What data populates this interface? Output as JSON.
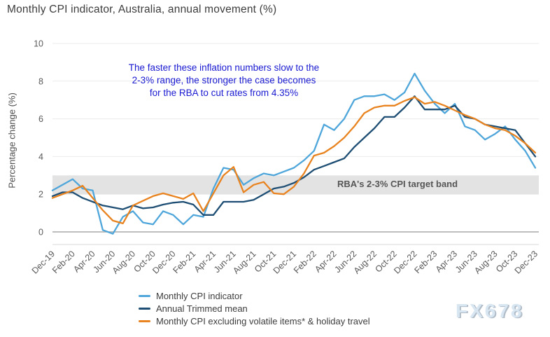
{
  "header": {
    "title": "Monthly CPI indicator, Australia, annual movement (%)"
  },
  "annotation": {
    "line1": "The faster these inflation numbers slow to the",
    "line2": "2-3% range, the stronger the case becomes",
    "line3": "for the RBA to cut rates from 4.35%",
    "color": "#1a1ad1"
  },
  "watermark": {
    "text": "FX678"
  },
  "chart_data": {
    "type": "line",
    "title": "Monthly CPI indicator, Australia, annual movement (%)",
    "ylabel": "Percentage change (%)",
    "y_ticks": [
      0,
      2,
      4,
      6,
      8,
      10
    ],
    "ylim": [
      -0.6,
      10
    ],
    "grid": "horizontal",
    "legend_position": "bottom",
    "x_tick_labels": [
      "Dec-19",
      "Feb-20",
      "Apr-20",
      "Jun-20",
      "Aug-20",
      "Oct-20",
      "Dec-20",
      "Feb-21",
      "Apr-21",
      "Jun-21",
      "Aug-21",
      "Oct-21",
      "Dec-21",
      "Feb-22",
      "Apr-22",
      "Jun-22",
      "Aug-22",
      "Oct-22",
      "Dec-22",
      "Feb-23",
      "Apr-23",
      "Jun-23",
      "Aug-23",
      "Oct-23",
      "Dec-23"
    ],
    "x_months": [
      "Dec-19",
      "Jan-20",
      "Feb-20",
      "Mar-20",
      "Apr-20",
      "May-20",
      "Jun-20",
      "Jul-20",
      "Aug-20",
      "Sep-20",
      "Oct-20",
      "Nov-20",
      "Dec-20",
      "Jan-21",
      "Feb-21",
      "Mar-21",
      "Apr-21",
      "May-21",
      "Jun-21",
      "Jul-21",
      "Aug-21",
      "Sep-21",
      "Oct-21",
      "Nov-21",
      "Dec-21",
      "Jan-22",
      "Feb-22",
      "Mar-22",
      "Apr-22",
      "May-22",
      "Jun-22",
      "Jul-22",
      "Aug-22",
      "Sep-22",
      "Oct-22",
      "Nov-22",
      "Dec-22",
      "Jan-23",
      "Feb-23",
      "Mar-23",
      "Apr-23",
      "May-23",
      "Jun-23",
      "Jul-23",
      "Aug-23",
      "Sep-23",
      "Oct-23",
      "Nov-23",
      "Dec-23"
    ],
    "band": {
      "label": "RBA's 2-3% CPI target band",
      "from": 2,
      "to": 3,
      "color": "#e3e3e3"
    },
    "series": [
      {
        "name": "Monthly CPI indicator",
        "color": "#4FA6DA",
        "values": [
          2.2,
          2.5,
          2.8,
          2.3,
          2.2,
          0.1,
          -0.1,
          0.8,
          1.1,
          0.5,
          0.4,
          1.1,
          0.9,
          0.4,
          0.9,
          0.8,
          2.3,
          3.4,
          3.3,
          2.5,
          2.85,
          3.1,
          3.0,
          3.2,
          3.4,
          3.8,
          4.3,
          5.7,
          5.4,
          6.0,
          7.0,
          7.2,
          7.2,
          7.3,
          7.0,
          7.4,
          8.4,
          7.5,
          6.8,
          6.3,
          6.8,
          5.6,
          5.4,
          4.9,
          5.2,
          5.6,
          4.9,
          4.3,
          3.4
        ]
      },
      {
        "name": "Annual Trimmed mean",
        "color": "#1E4E73",
        "values": [
          1.9,
          2.1,
          2.1,
          1.8,
          1.6,
          1.4,
          1.3,
          1.2,
          1.4,
          1.25,
          1.3,
          1.45,
          1.55,
          1.6,
          1.45,
          0.9,
          0.9,
          1.6,
          1.6,
          1.6,
          1.7,
          2.0,
          2.3,
          2.4,
          2.6,
          2.9,
          3.3,
          3.5,
          3.7,
          3.9,
          4.5,
          5.0,
          5.5,
          6.1,
          6.1,
          6.6,
          7.2,
          6.5,
          6.5,
          6.5,
          6.7,
          6.1,
          6.0,
          5.7,
          5.6,
          5.5,
          5.4,
          4.7,
          4.0
        ]
      },
      {
        "name": "Monthly CPI excluding volatile items* & holiday travel",
        "color": "#E8831F",
        "values": [
          1.8,
          2.0,
          2.2,
          2.45,
          1.8,
          1.15,
          0.6,
          0.45,
          1.4,
          1.65,
          1.9,
          2.05,
          1.9,
          1.75,
          2.05,
          1.1,
          2.05,
          3.0,
          3.45,
          2.1,
          2.5,
          2.65,
          2.05,
          2.0,
          2.4,
          3.1,
          4.05,
          4.2,
          4.55,
          5.0,
          5.6,
          6.3,
          6.6,
          6.7,
          6.7,
          6.95,
          7.15,
          6.8,
          6.9,
          6.7,
          6.45,
          6.2,
          6.0,
          5.7,
          5.5,
          5.4,
          5.1,
          4.7,
          4.2
        ]
      }
    ]
  }
}
